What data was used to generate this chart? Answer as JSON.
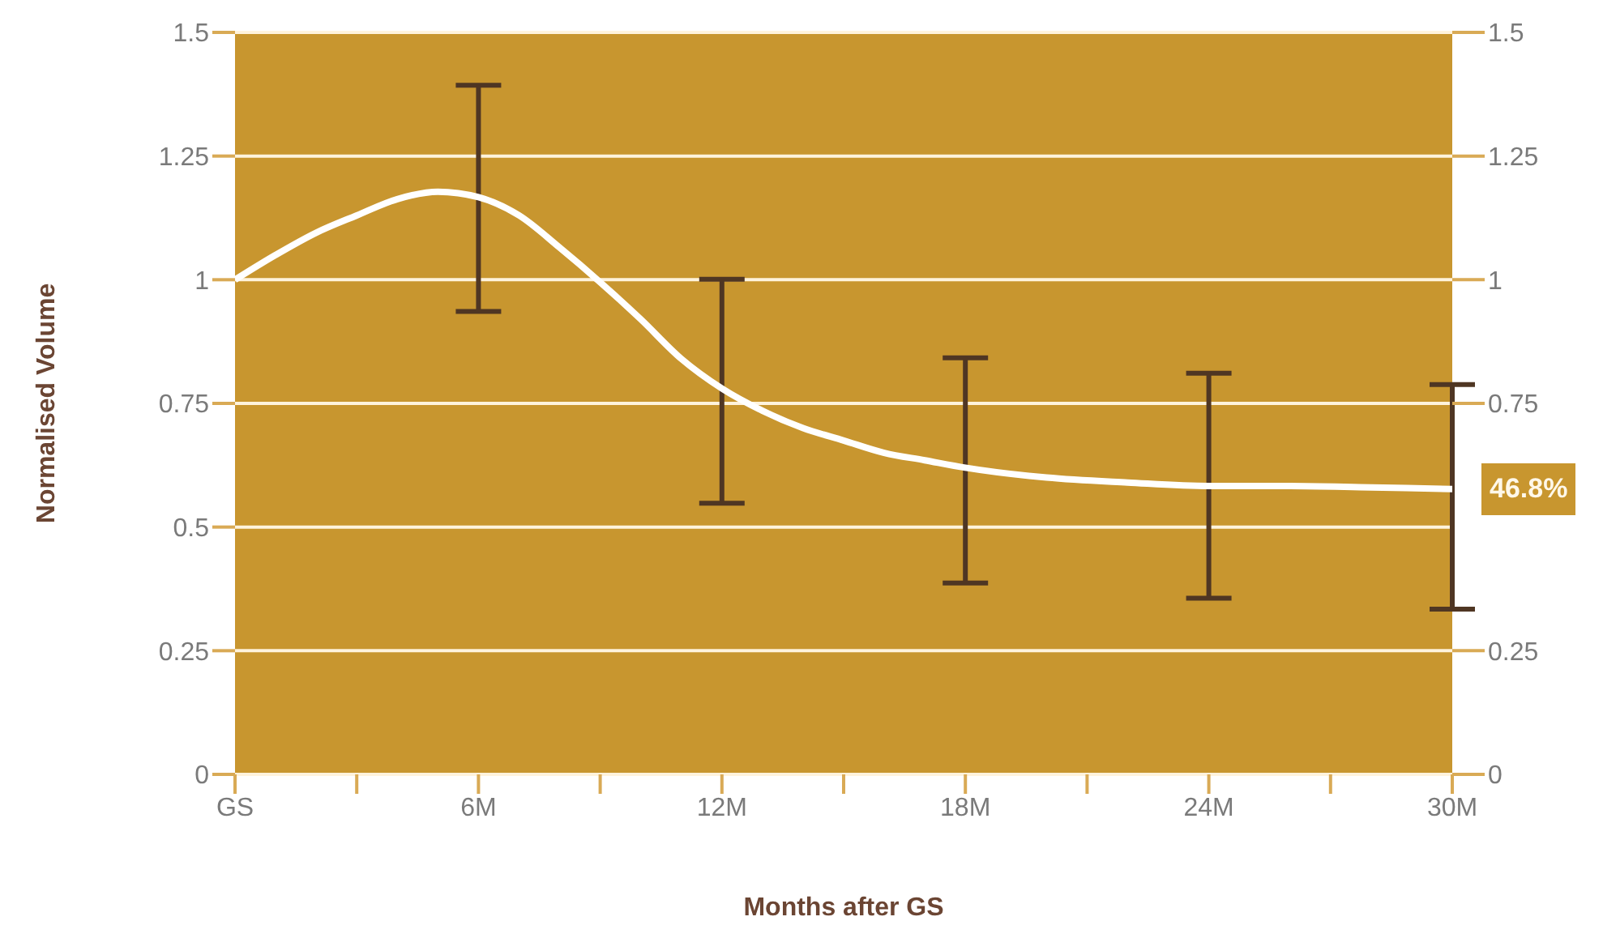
{
  "chart_data": {
    "type": "line",
    "xlabel": "Months after GS",
    "ylabel": "Normalised Volume",
    "x": [
      0,
      1,
      2,
      3,
      4,
      5,
      6,
      7,
      8,
      9,
      10,
      11,
      12,
      13,
      14,
      15,
      16,
      17,
      18,
      20,
      22,
      24,
      26,
      28,
      30
    ],
    "series": [
      {
        "color": "#ffffff",
        "values": [
          1.0,
          1.05,
          1.095,
          1.13,
          1.163,
          1.178,
          1.167,
          1.13,
          1.065,
          0.995,
          0.92,
          0.84,
          0.78,
          0.735,
          0.7,
          0.675,
          0.65,
          0.635,
          0.62,
          0.6,
          0.59,
          0.583,
          0.583,
          0.58,
          0.577
        ],
        "errors": [
          null,
          null,
          null,
          null,
          null,
          null,
          [
            0.936,
            1.393
          ],
          null,
          null,
          null,
          null,
          null,
          [
            0.548,
            1.001
          ],
          null,
          null,
          null,
          null,
          null,
          [
            0.387,
            0.842
          ],
          null,
          null,
          [
            0.356,
            0.811
          ],
          null,
          null,
          [
            0.334,
            0.788
          ]
        ]
      }
    ],
    "xlim": [
      0,
      30
    ],
    "xticks": [
      {
        "value": 0,
        "label": "GS"
      },
      {
        "value": 3,
        "label": null
      },
      {
        "value": 6,
        "label": "6M"
      },
      {
        "value": 9,
        "label": null
      },
      {
        "value": 12,
        "label": "12M"
      },
      {
        "value": 15,
        "label": null
      },
      {
        "value": 18,
        "label": "18M"
      },
      {
        "value": 21,
        "label": null
      },
      {
        "value": 24,
        "label": "24M"
      },
      {
        "value": 27,
        "label": null
      },
      {
        "value": 30,
        "label": "30M"
      }
    ],
    "ylim": [
      0,
      1.5
    ],
    "yticks": [
      0,
      0.25,
      0.5,
      0.75,
      1,
      1.25,
      1.5
    ],
    "y2lim": [
      0,
      1.5
    ],
    "y2ticks": [
      0,
      0.25,
      0.75,
      1,
      1.25,
      1.5
    ],
    "annotations": [
      {
        "text": "46.8%",
        "x": 30,
        "y": 0.577
      }
    ],
    "grid": "y",
    "marker": "none",
    "line_style": "solid"
  }
}
